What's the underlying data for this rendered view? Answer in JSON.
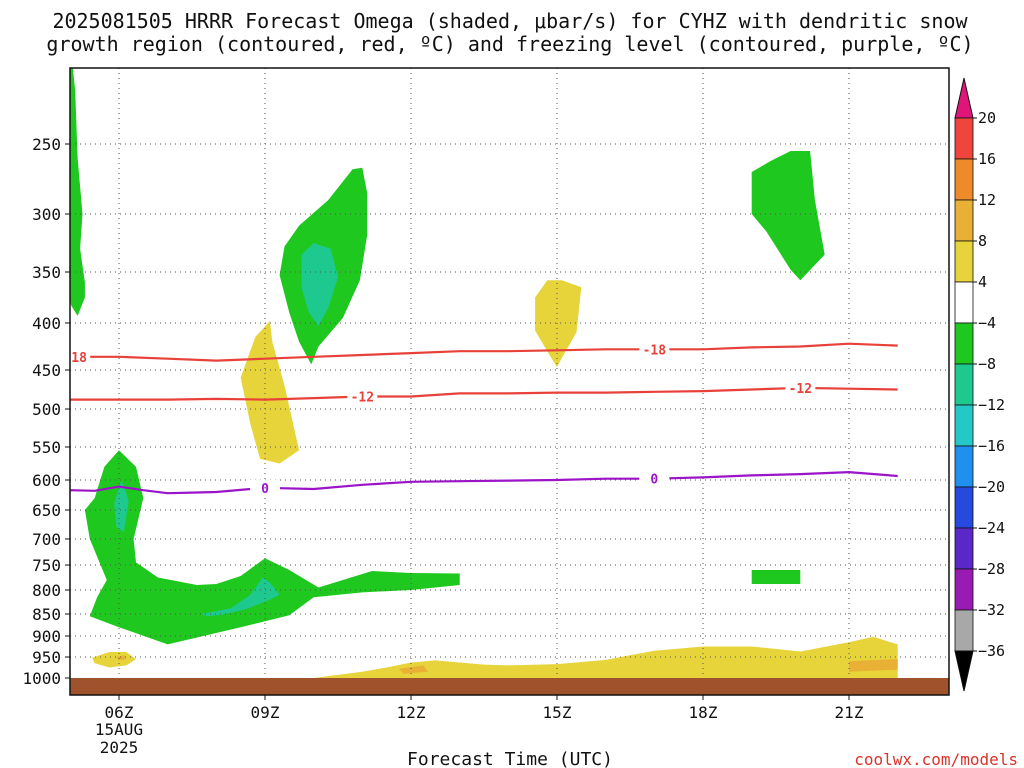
{
  "title": {
    "line1": "2025081505 HRRR Forecast Omega (shaded, μbar/s) for CYHZ with dendritic snow",
    "line2": "growth region (contoured, red, ºC) and freezing level (contoured, purple, ºC)"
  },
  "credit": "coolwx.com/models",
  "chart_data": {
    "type": "contour",
    "xlabel": "Forecast Time (UTC)",
    "ylabel": "",
    "x_axis": {
      "range_hours_utc": [
        4,
        22
      ],
      "ticks": [
        {
          "hour": 6,
          "label": "06Z"
        },
        {
          "hour": 9,
          "label": "09Z"
        },
        {
          "hour": 12,
          "label": "12Z"
        },
        {
          "hour": 15,
          "label": "15Z"
        },
        {
          "hour": 18,
          "label": "18Z"
        },
        {
          "hour": 21,
          "label": "21Z"
        }
      ],
      "date_label_line2": "15AUG",
      "date_label_line3": "2025"
    },
    "y_axis": {
      "unit": "hPa",
      "direction": "inverted",
      "range": [
        1000,
        200
      ],
      "ticks": [
        250,
        300,
        350,
        400,
        450,
        500,
        550,
        600,
        650,
        700,
        750,
        800,
        850,
        900,
        950,
        1000
      ]
    },
    "grid": true,
    "colorbar": {
      "position": "right",
      "labels": [
        "20",
        "16",
        "12",
        "8",
        "4",
        "−4",
        "−8",
        "−12",
        "−16",
        "−20",
        "−24",
        "−28",
        "−32",
        "−36"
      ],
      "bins": [
        {
          "range": ">20",
          "color": "#e0157a"
        },
        {
          "range": "16 to 20",
          "color": "#f0453c"
        },
        {
          "range": "12 to 16",
          "color": "#ee8a2a"
        },
        {
          "range": "8 to 12",
          "color": "#e8b035"
        },
        {
          "range": "4 to 8",
          "color": "#e6d43a"
        },
        {
          "range": "-4 to 4",
          "color": "#ffffff"
        },
        {
          "range": "-8 to -4",
          "color": "#1ec81e"
        },
        {
          "range": "-12 to -8",
          "color": "#1ec98f"
        },
        {
          "range": "-16 to -12",
          "color": "#24c8c8"
        },
        {
          "range": "-20 to -16",
          "color": "#1f8ff0"
        },
        {
          "range": "-24 to -20",
          "color": "#2649e0"
        },
        {
          "range": "-28 to -24",
          "color": "#5a28c8"
        },
        {
          "range": "-32 to -28",
          "color": "#9a1ab4"
        },
        {
          "range": "-36 to -32",
          "color": "#a8a8a8"
        },
        {
          "range": "<-36",
          "color": "#000000"
        }
      ]
    },
    "contours": [
      {
        "name": "-18",
        "color": "#e8413a",
        "label": "-18",
        "points": [
          [
            4,
            432
          ],
          [
            5,
            436
          ],
          [
            6,
            436
          ],
          [
            7,
            438
          ],
          [
            8,
            440
          ],
          [
            9,
            438
          ],
          [
            10,
            436
          ],
          [
            11,
            434
          ],
          [
            12,
            432
          ],
          [
            13,
            430
          ],
          [
            14,
            430
          ],
          [
            15,
            429
          ],
          [
            16,
            428
          ],
          [
            17,
            428
          ],
          [
            18,
            428
          ],
          [
            19,
            426
          ],
          [
            20,
            425
          ],
          [
            21,
            422
          ],
          [
            22,
            424
          ]
        ]
      },
      {
        "name": "-12",
        "color": "#e8413a",
        "label": "-12",
        "points": [
          [
            4,
            486
          ],
          [
            5,
            488
          ],
          [
            6,
            488
          ],
          [
            7,
            488
          ],
          [
            8,
            487
          ],
          [
            9,
            488
          ],
          [
            10,
            486
          ],
          [
            11,
            484
          ],
          [
            12,
            484
          ],
          [
            13,
            480
          ],
          [
            14,
            480
          ],
          [
            15,
            479
          ],
          [
            16,
            479
          ],
          [
            17,
            478
          ],
          [
            18,
            477
          ],
          [
            19,
            475
          ],
          [
            20,
            473
          ],
          [
            21,
            474
          ],
          [
            22,
            475
          ]
        ]
      },
      {
        "name": "0",
        "color": "#9b14c8",
        "label": "0",
        "points": [
          [
            4,
            623
          ],
          [
            5,
            617
          ],
          [
            5.5,
            618
          ],
          [
            6,
            611
          ],
          [
            6.5,
            617
          ],
          [
            7,
            622
          ],
          [
            7.5,
            621
          ],
          [
            8,
            620
          ],
          [
            9,
            613
          ],
          [
            10,
            615
          ],
          [
            11,
            608
          ],
          [
            12,
            603
          ],
          [
            13,
            602
          ],
          [
            14,
            601
          ],
          [
            15,
            600
          ],
          [
            16,
            598
          ],
          [
            17,
            598
          ],
          [
            18,
            596
          ],
          [
            19,
            593
          ],
          [
            20,
            591
          ],
          [
            21,
            588
          ],
          [
            22,
            594
          ]
        ]
      }
    ],
    "omega_regions": [
      {
        "name": "upper-green-strip",
        "bin": "-8 to -4",
        "points": [
          [
            4.55,
            200
          ],
          [
            5.05,
            200
          ],
          [
            5.1,
            215
          ],
          [
            5.15,
            260
          ],
          [
            5.25,
            300
          ],
          [
            5.2,
            330
          ],
          [
            5.3,
            360
          ],
          [
            5.3,
            375
          ],
          [
            5.15,
            393
          ],
          [
            5.02,
            383
          ],
          [
            4.9,
            360
          ],
          [
            4.85,
            320
          ],
          [
            4.85,
            280
          ],
          [
            4.75,
            250
          ],
          [
            4.6,
            225
          ],
          [
            4.55,
            210
          ]
        ]
      },
      {
        "name": "upper-mid-green",
        "bin": "-8 to -4",
        "points": [
          [
            9.3,
            353
          ],
          [
            9.4,
            328
          ],
          [
            9.7,
            310
          ],
          [
            10.3,
            290
          ],
          [
            10.8,
            268
          ],
          [
            11.0,
            267
          ],
          [
            11.1,
            285
          ],
          [
            11.1,
            318
          ],
          [
            10.95,
            358
          ],
          [
            10.6,
            395
          ],
          [
            10.1,
            425
          ],
          [
            9.95,
            444
          ],
          [
            9.7,
            420
          ],
          [
            9.5,
            390
          ]
        ]
      },
      {
        "name": "upper-mid-teal",
        "bin": "-12 to -8",
        "points": [
          [
            9.75,
            335
          ],
          [
            10.0,
            325
          ],
          [
            10.35,
            330
          ],
          [
            10.5,
            355
          ],
          [
            10.3,
            385
          ],
          [
            10.1,
            403
          ],
          [
            9.9,
            390
          ],
          [
            9.75,
            365
          ]
        ]
      },
      {
        "name": "upper-right-green",
        "bin": "-8 to -4",
        "points": [
          [
            19.0,
            270
          ],
          [
            19.4,
            262
          ],
          [
            19.8,
            255
          ],
          [
            20.2,
            255
          ],
          [
            20.3,
            290
          ],
          [
            20.5,
            335
          ],
          [
            20.0,
            358
          ],
          [
            19.8,
            348
          ],
          [
            19.3,
            315
          ],
          [
            19.0,
            300
          ]
        ]
      },
      {
        "name": "upper-yellow-15z",
        "bin": "4 to 8",
        "points": [
          [
            14.55,
            375
          ],
          [
            14.8,
            358
          ],
          [
            15.1,
            358
          ],
          [
            15.5,
            365
          ],
          [
            15.4,
            410
          ],
          [
            15.1,
            437
          ],
          [
            15.0,
            447
          ],
          [
            14.8,
            430
          ],
          [
            14.55,
            408
          ]
        ]
      },
      {
        "name": "mid-yellow-09z",
        "bin": "4 to 8",
        "points": [
          [
            8.5,
            460
          ],
          [
            8.8,
            415
          ],
          [
            9.1,
            398
          ],
          [
            9.15,
            420
          ],
          [
            9.4,
            470
          ],
          [
            9.7,
            555
          ],
          [
            9.3,
            575
          ],
          [
            8.9,
            568
          ],
          [
            8.7,
            520
          ]
        ]
      },
      {
        "name": "lower-left-green",
        "bin": "-8 to -4",
        "points": [
          [
            5.5,
            630
          ],
          [
            5.7,
            580
          ],
          [
            6.0,
            555
          ],
          [
            6.35,
            580
          ],
          [
            6.5,
            630
          ],
          [
            6.3,
            700
          ],
          [
            6.35,
            745
          ],
          [
            6.8,
            775
          ],
          [
            7.6,
            790
          ],
          [
            8.0,
            788
          ],
          [
            8.5,
            772
          ],
          [
            9.0,
            737
          ],
          [
            9.5,
            760
          ],
          [
            10.1,
            795
          ],
          [
            11.2,
            762
          ],
          [
            12.0,
            766
          ],
          [
            13.0,
            767
          ],
          [
            13.0,
            790
          ],
          [
            12.0,
            800
          ],
          [
            11.0,
            805
          ],
          [
            10.0,
            815
          ],
          [
            9.5,
            853
          ],
          [
            8.5,
            880
          ],
          [
            7.0,
            920
          ],
          [
            6.0,
            880
          ],
          [
            5.4,
            855
          ],
          [
            5.55,
            815
          ],
          [
            5.75,
            780
          ],
          [
            5.4,
            700
          ],
          [
            5.3,
            650
          ]
        ]
      },
      {
        "name": "lower-left-teal",
        "bin": "-12 to -8",
        "points": [
          [
            5.9,
            640
          ],
          [
            6.05,
            600
          ],
          [
            6.2,
            635
          ],
          [
            6.1,
            688
          ],
          [
            5.95,
            680
          ]
        ]
      },
      {
        "name": "lower-mid-teal",
        "bin": "-12 to -8",
        "points": [
          [
            7.7,
            850
          ],
          [
            8.3,
            838
          ],
          [
            8.7,
            810
          ],
          [
            8.95,
            775
          ],
          [
            9.1,
            785
          ],
          [
            9.3,
            810
          ],
          [
            9.1,
            820
          ],
          [
            8.6,
            840
          ],
          [
            8.1,
            852
          ],
          [
            7.8,
            855
          ]
        ]
      },
      {
        "name": "lower-right-green",
        "bin": "-8 to -4",
        "points": [
          [
            19.0,
            760
          ],
          [
            20.0,
            760
          ],
          [
            20.0,
            788
          ],
          [
            19.0,
            788
          ]
        ]
      },
      {
        "name": "surface-left-yellow",
        "bin": "4 to 8",
        "points": [
          [
            5.45,
            952
          ],
          [
            5.8,
            938
          ],
          [
            6.15,
            938
          ],
          [
            6.35,
            955
          ],
          [
            6.15,
            970
          ],
          [
            5.8,
            975
          ],
          [
            5.5,
            965
          ]
        ]
      },
      {
        "name": "surface-left-orange",
        "bin": "8 to 12",
        "points": [
          [
            5.95,
            950
          ],
          [
            6.1,
            946
          ],
          [
            6.15,
            955
          ],
          [
            6.0,
            958
          ]
        ]
      },
      {
        "name": "surface-yellow-band",
        "bin": "4 to 8",
        "points": [
          [
            10.0,
            1000
          ],
          [
            11.0,
            985
          ],
          [
            11.5,
            975
          ],
          [
            12.0,
            963
          ],
          [
            12.5,
            958
          ],
          [
            13.0,
            963
          ],
          [
            13.5,
            968
          ],
          [
            14.0,
            970
          ],
          [
            15.0,
            967
          ],
          [
            16.0,
            957
          ],
          [
            17.0,
            935
          ],
          [
            18.0,
            925
          ],
          [
            19.0,
            925
          ],
          [
            20.0,
            937
          ],
          [
            21.0,
            915
          ],
          [
            21.5,
            902
          ],
          [
            22.0,
            920
          ],
          [
            22.0,
            1000
          ]
        ]
      },
      {
        "name": "surface-orange-12z",
        "bin": "8 to 12",
        "points": [
          [
            11.75,
            978
          ],
          [
            12.25,
            970
          ],
          [
            12.35,
            985
          ],
          [
            11.85,
            990
          ]
        ]
      },
      {
        "name": "surface-orange-22z",
        "bin": "8 to 12",
        "points": [
          [
            21.0,
            960
          ],
          [
            22.0,
            955
          ],
          [
            22.0,
            980
          ],
          [
            21.0,
            985
          ]
        ]
      }
    ],
    "ground": {
      "color": "#a0522d"
    }
  }
}
